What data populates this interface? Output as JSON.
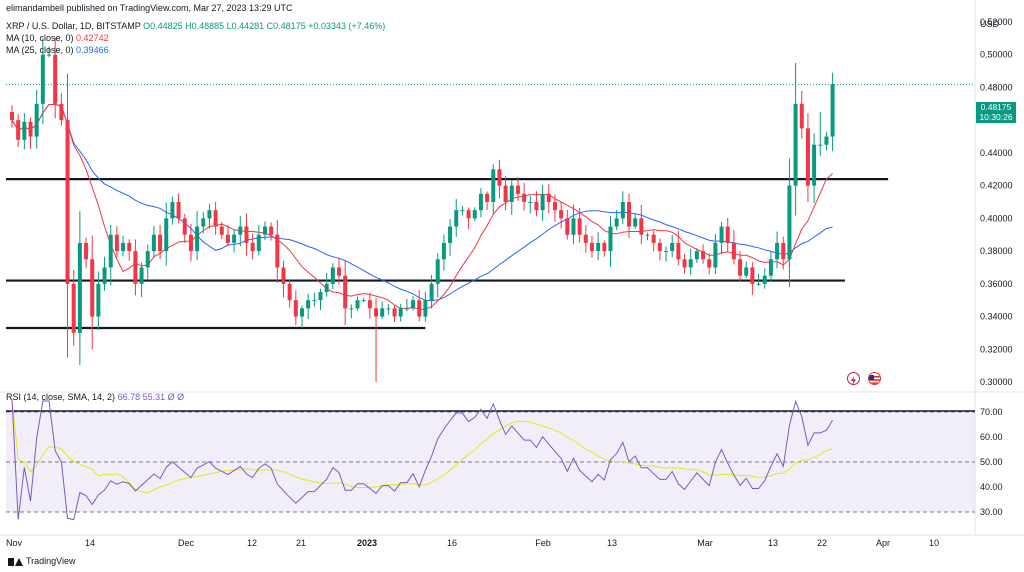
{
  "header": {
    "author": "elimandambell published on TradingView.com, Mar 27, 2023 13:29 UTC",
    "symbol": "XRP / U.S. Dollar, 1D, BITSTAMP",
    "ohlc": "O0.44825  H0.48885  L0.44281  C0.48175  +0.03343 (+7.46%)",
    "ma10_label": "MA (10, close, 0)",
    "ma10_value": "0.42742",
    "ma25_label": "MA (25, close, 0)",
    "ma25_value": "0.39466",
    "rsi_label": "RSI (14, close, SMA, 14, 2)",
    "rsi_values": "66.78  55.31  Ø  Ø"
  },
  "price_badge": {
    "price": "0.48175",
    "countdown": "10:30:26"
  },
  "footer": {
    "brand": "TradingView"
  },
  "colors": {
    "up": "#089981",
    "down": "#f23645",
    "ma10": "#f23645",
    "ma25": "#2962ff",
    "rsi": "#7e57c2",
    "rsi_ma": "#e6e61a"
  },
  "icons": [
    "lightning-icon",
    "flag-icon",
    "tradingview-logo-icon"
  ],
  "chart_data": {
    "type": "candlestick",
    "currency_label": "USD",
    "price_axis_ticks": [
      "0.52000",
      "0.50000",
      "0.48000",
      "0.46000",
      "0.44000",
      "0.42000",
      "0.40000",
      "0.38000",
      "0.36000",
      "0.34000",
      "0.32000",
      "0.30000"
    ],
    "rsi_axis_ticks": [
      "70.00",
      "60.00",
      "50.00",
      "40.00",
      "30.00"
    ],
    "x_axis_ticks": [
      "Nov",
      "14",
      "Dec",
      "12",
      "21",
      "2023",
      "16",
      "Feb",
      "13",
      "Mar",
      "13",
      "22",
      "Apr",
      "10"
    ],
    "ylim": [
      0.3,
      0.52
    ],
    "rsi_ylim": [
      25,
      75
    ],
    "rsi_levels": [
      70,
      50,
      30
    ],
    "horizontal_lines": [
      {
        "price": 0.424,
        "from_day": 0,
        "to_day": 142
      },
      {
        "price": 0.362,
        "from_day": 0,
        "to_day": 135
      },
      {
        "price": 0.333,
        "from_day": 0,
        "to_day": 67
      }
    ],
    "closes": [
      0.46,
      0.448,
      0.459,
      0.45,
      0.47,
      0.5,
      0.5,
      0.47,
      0.46,
      0.36,
      0.33,
      0.385,
      0.375,
      0.34,
      0.36,
      0.37,
      0.39,
      0.38,
      0.385,
      0.38,
      0.36,
      0.37,
      0.38,
      0.39,
      0.38,
      0.4,
      0.41,
      0.4,
      0.39,
      0.38,
      0.395,
      0.4,
      0.405,
      0.395,
      0.39,
      0.385,
      0.39,
      0.395,
      0.385,
      0.38,
      0.39,
      0.395,
      0.39,
      0.37,
      0.36,
      0.35,
      0.34,
      0.345,
      0.35,
      0.35,
      0.355,
      0.36,
      0.37,
      0.365,
      0.345,
      0.345,
      0.35,
      0.35,
      0.345,
      0.34,
      0.345,
      0.345,
      0.34,
      0.345,
      0.345,
      0.35,
      0.34,
      0.35,
      0.36,
      0.375,
      0.385,
      0.395,
      0.405,
      0.405,
      0.4,
      0.405,
      0.415,
      0.41,
      0.43,
      0.42,
      0.41,
      0.42,
      0.415,
      0.41,
      0.41,
      0.405,
      0.415,
      0.41,
      0.405,
      0.4,
      0.39,
      0.4,
      0.39,
      0.385,
      0.38,
      0.385,
      0.38,
      0.395,
      0.4,
      0.41,
      0.395,
      0.4,
      0.39,
      0.39,
      0.385,
      0.38,
      0.38,
      0.385,
      0.375,
      0.37,
      0.375,
      0.38,
      0.375,
      0.37,
      0.385,
      0.395,
      0.385,
      0.375,
      0.365,
      0.37,
      0.36,
      0.36,
      0.365,
      0.375,
      0.385,
      0.375,
      0.42,
      0.47,
      0.455,
      0.42,
      0.445,
      0.445,
      0.45,
      0.482
    ],
    "closing_price": 0.48175,
    "ma10_last": 0.42742,
    "ma25_last": 0.39466,
    "rsi_last": 66.78,
    "rsi_ma_last": 55.31
  }
}
